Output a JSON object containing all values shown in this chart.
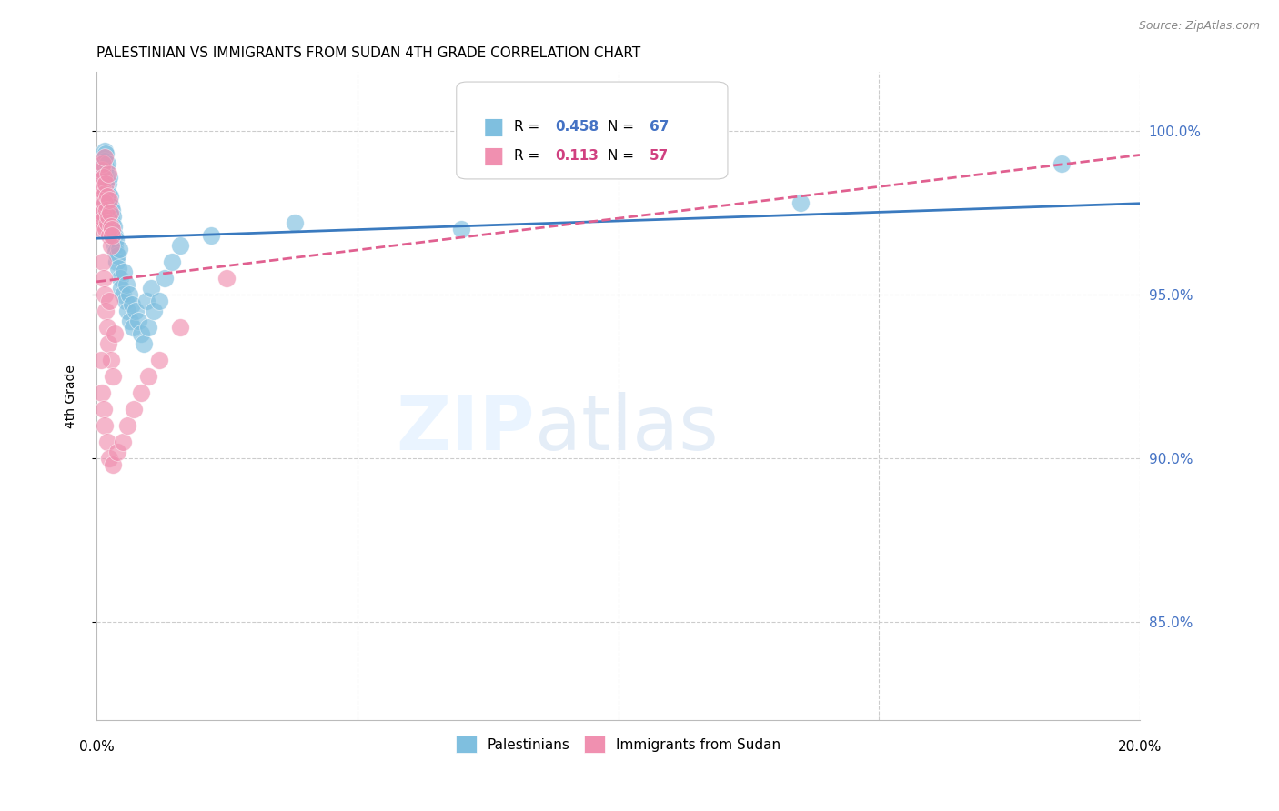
{
  "title": "PALESTINIAN VS IMMIGRANTS FROM SUDAN 4TH GRADE CORRELATION CHART",
  "source": "Source: ZipAtlas.com",
  "ylabel": "4th Grade",
  "y_ticks": [
    85.0,
    90.0,
    95.0,
    100.0
  ],
  "y_tick_labels": [
    "85.0%",
    "90.0%",
    "95.0%",
    "100.0%"
  ],
  "x_range": [
    0.0,
    20.0
  ],
  "y_range": [
    82.0,
    101.8
  ],
  "palestinians_color": "#7fbfdf",
  "sudan_color": "#f090b0",
  "trend_blue": "#3a7abf",
  "trend_pink": "#e06090",
  "R_blue": "0.458",
  "N_blue": "67",
  "R_pink": "0.113",
  "N_pink": "57",
  "legend_label_blue": "Palestinians",
  "legend_label_pink": "Immigrants from Sudan",
  "palestinians_x": [
    0.05,
    0.07,
    0.08,
    0.1,
    0.1,
    0.11,
    0.12,
    0.13,
    0.14,
    0.15,
    0.15,
    0.16,
    0.17,
    0.18,
    0.18,
    0.19,
    0.2,
    0.21,
    0.22,
    0.22,
    0.23,
    0.24,
    0.25,
    0.26,
    0.27,
    0.28,
    0.29,
    0.3,
    0.31,
    0.32,
    0.33,
    0.34,
    0.35,
    0.36,
    0.37,
    0.38,
    0.4,
    0.42,
    0.43,
    0.45,
    0.47,
    0.5,
    0.52,
    0.55,
    0.57,
    0.6,
    0.63,
    0.65,
    0.68,
    0.7,
    0.75,
    0.8,
    0.85,
    0.9,
    0.95,
    1.0,
    1.05,
    1.1,
    1.2,
    1.3,
    1.45,
    1.6,
    2.2,
    3.8,
    7.0,
    13.5,
    18.5
  ],
  "palestinians_y": [
    97.5,
    97.8,
    98.5,
    98.0,
    99.2,
    98.8,
    99.0,
    98.6,
    98.3,
    98.7,
    99.4,
    99.1,
    98.9,
    98.2,
    99.3,
    98.5,
    97.9,
    99.0,
    98.4,
    98.1,
    97.8,
    98.6,
    97.5,
    98.0,
    97.7,
    97.3,
    97.6,
    97.2,
    97.0,
    97.4,
    97.1,
    96.8,
    96.5,
    96.7,
    96.3,
    96.0,
    96.2,
    95.8,
    96.4,
    95.5,
    95.2,
    95.0,
    95.7,
    94.8,
    95.3,
    94.5,
    95.0,
    94.2,
    94.7,
    94.0,
    94.5,
    94.2,
    93.8,
    93.5,
    94.8,
    94.0,
    95.2,
    94.5,
    94.8,
    95.5,
    96.0,
    96.5,
    96.8,
    97.2,
    97.0,
    97.8,
    99.0
  ],
  "sudan_x": [
    0.04,
    0.05,
    0.06,
    0.07,
    0.08,
    0.09,
    0.1,
    0.1,
    0.11,
    0.12,
    0.12,
    0.13,
    0.14,
    0.15,
    0.15,
    0.16,
    0.17,
    0.18,
    0.19,
    0.2,
    0.21,
    0.22,
    0.23,
    0.24,
    0.25,
    0.26,
    0.27,
    0.28,
    0.29,
    0.3,
    0.12,
    0.14,
    0.16,
    0.18,
    0.2,
    0.22,
    0.25,
    0.28,
    0.32,
    0.35,
    0.08,
    0.1,
    0.13,
    0.16,
    0.2,
    0.25,
    0.32,
    0.4,
    0.5,
    0.6,
    0.72,
    0.85,
    1.0,
    1.2,
    1.6,
    2.5,
    9.5
  ],
  "sudan_y": [
    97.8,
    98.2,
    97.5,
    98.0,
    98.5,
    97.2,
    98.8,
    97.0,
    98.3,
    99.0,
    97.5,
    98.6,
    97.3,
    98.1,
    99.2,
    97.8,
    97.0,
    98.4,
    97.6,
    98.0,
    97.2,
    98.7,
    97.4,
    97.9,
    96.8,
    97.5,
    97.1,
    96.5,
    97.0,
    96.8,
    96.0,
    95.5,
    95.0,
    94.5,
    94.0,
    93.5,
    94.8,
    93.0,
    92.5,
    93.8,
    93.0,
    92.0,
    91.5,
    91.0,
    90.5,
    90.0,
    89.8,
    90.2,
    90.5,
    91.0,
    91.5,
    92.0,
    92.5,
    93.0,
    94.0,
    95.5,
    99.5
  ]
}
